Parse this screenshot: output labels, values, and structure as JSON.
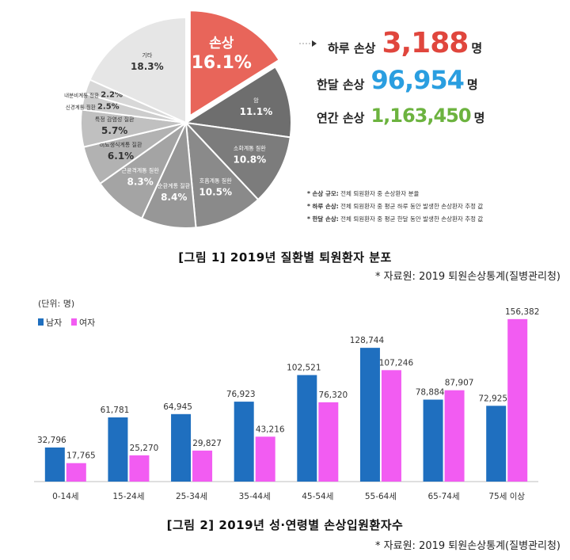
{
  "pie_chart": {
    "slices": [
      {
        "label": "손상",
        "value": 16.1,
        "color": "#e8655a",
        "text_color": "#ffffff",
        "highlight": true
      },
      {
        "label": "암",
        "value": 11.1,
        "color": "#6e6e6e",
        "text_color": "#ffffff"
      },
      {
        "label": "소화계통 질환",
        "value": 10.8,
        "color": "#7c7c7c",
        "text_color": "#ffffff"
      },
      {
        "label": "호흡계통 질환",
        "value": 10.5,
        "color": "#8a8a8a",
        "text_color": "#ffffff"
      },
      {
        "label": "순환계통 질환",
        "value": 8.4,
        "color": "#979797",
        "text_color": "#ffffff"
      },
      {
        "label": "근골격계통 질환",
        "value": 8.3,
        "color": "#a4a4a4",
        "text_color": "#ffffff"
      },
      {
        "label": "비뇨생식계통 질환",
        "value": 6.1,
        "color": "#b2b2b2",
        "text_color": "#333333"
      },
      {
        "label": "특정 감염성 질환",
        "value": 5.7,
        "color": "#c0c0c0",
        "text_color": "#333333"
      },
      {
        "label": "신경계통 질환",
        "value": 2.5,
        "color": "#cdcdcd",
        "text_color": "#333333"
      },
      {
        "label": "내분비계통 질환",
        "value": 2.2,
        "color": "#d8d8d8",
        "text_color": "#333333"
      },
      {
        "label": "기타",
        "value": 18.3,
        "color": "#e6e6e6",
        "text_color": "#333333"
      }
    ]
  },
  "stats": [
    {
      "label": "하루 손상",
      "value": "3,188",
      "unit": "명",
      "color": "#e0463d"
    },
    {
      "label": "한달 손상",
      "value": "96,954",
      "unit": "명",
      "color": "#2a9ee0"
    },
    {
      "label": "연간 손상",
      "value": "1,163,450",
      "unit": "명",
      "color": "#6cb33f"
    }
  ],
  "notes": [
    {
      "title": "* 손상 규모:",
      "text": "전체 퇴원환자 중 손상환자 분율"
    },
    {
      "title": "* 하루 손상:",
      "text": "전체 퇴원환자 중 평균 하루 동안 발생한 손상환자 추정 값"
    },
    {
      "title": "* 한달 손상:",
      "text": "전체 퇴원환자 중 평균 한달 동안 발생한 손상환자 추정 값"
    }
  ],
  "figure1": {
    "caption": "[그림 1] 2019년 질환별 퇴원환자 분포",
    "source": "* 자료원: 2019 퇴원손상통계(질병관리청)"
  },
  "chart_data": {
    "type": "bar",
    "unit_label": "(단위: 명)",
    "categories": [
      "0-14세",
      "15-24세",
      "25-34세",
      "35-44세",
      "45-54세",
      "55-64세",
      "65-74세",
      "75세 이상"
    ],
    "series": [
      {
        "name": "남자",
        "color": "#1f6fbf",
        "values": [
          32796,
          61781,
          64945,
          76923,
          102521,
          128744,
          78884,
          72925
        ],
        "labels": [
          "32,796",
          "61,781",
          "64,945",
          "76,923",
          "102,521",
          "128,744",
          "78,884",
          "72,925"
        ]
      },
      {
        "name": "여자",
        "color": "#f25cf2",
        "values": [
          17765,
          25270,
          29827,
          43216,
          76320,
          107246,
          87907,
          156382
        ],
        "labels": [
          "17,765",
          "25,270",
          "29,827",
          "43,216",
          "76,320",
          "107,246",
          "87,907",
          "156,382"
        ]
      }
    ],
    "ylim": [
      0,
      170000
    ]
  },
  "figure2": {
    "caption": "[그림 2] 2019년 성·연령별 손상입원환자수",
    "source": "* 자료원: 2019 퇴원손상통계(질병관리청)"
  }
}
